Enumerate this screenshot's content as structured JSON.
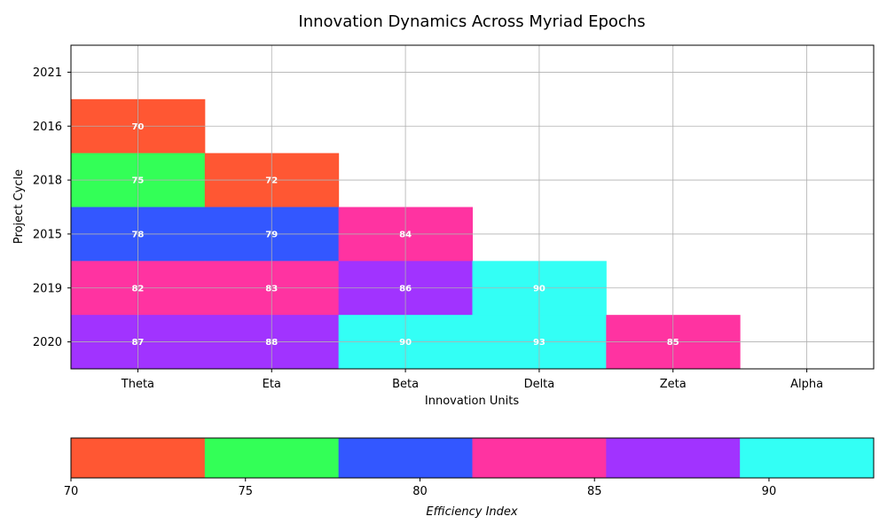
{
  "chart_data": {
    "type": "heatmap",
    "title": "Innovation Dynamics Across Myriad Epochs",
    "xlabel": "Innovation Units",
    "ylabel": "Project Cycle",
    "x_categories": [
      "Theta",
      "Eta",
      "Beta",
      "Delta",
      "Zeta",
      "Alpha"
    ],
    "y_categories": [
      "2021",
      "2016",
      "2018",
      "2015",
      "2019",
      "2020"
    ],
    "grid": true,
    "cells": [
      {
        "y": "2016",
        "x": "Theta",
        "value": 70
      },
      {
        "y": "2018",
        "x": "Theta",
        "value": 75
      },
      {
        "y": "2018",
        "x": "Eta",
        "value": 72
      },
      {
        "y": "2015",
        "x": "Theta",
        "value": 78
      },
      {
        "y": "2015",
        "x": "Eta",
        "value": 79
      },
      {
        "y": "2015",
        "x": "Beta",
        "value": 84
      },
      {
        "y": "2019",
        "x": "Theta",
        "value": 82
      },
      {
        "y": "2019",
        "x": "Eta",
        "value": 83
      },
      {
        "y": "2019",
        "x": "Beta",
        "value": 86
      },
      {
        "y": "2019",
        "x": "Delta",
        "value": 90
      },
      {
        "y": "2020",
        "x": "Theta",
        "value": 87
      },
      {
        "y": "2020",
        "x": "Eta",
        "value": 88
      },
      {
        "y": "2020",
        "x": "Beta",
        "value": 90
      },
      {
        "y": "2020",
        "x": "Delta",
        "value": 93
      },
      {
        "y": "2020",
        "x": "Zeta",
        "value": 85
      }
    ],
    "colorbar": {
      "label": "Efficiency Index",
      "range": [
        70,
        93
      ],
      "ticks": [
        70,
        75,
        80,
        85,
        90
      ],
      "colors": [
        "#FF5733",
        "#33FF57",
        "#3357FF",
        "#FF33A1",
        "#A133FF",
        "#33FFF5"
      ]
    }
  }
}
